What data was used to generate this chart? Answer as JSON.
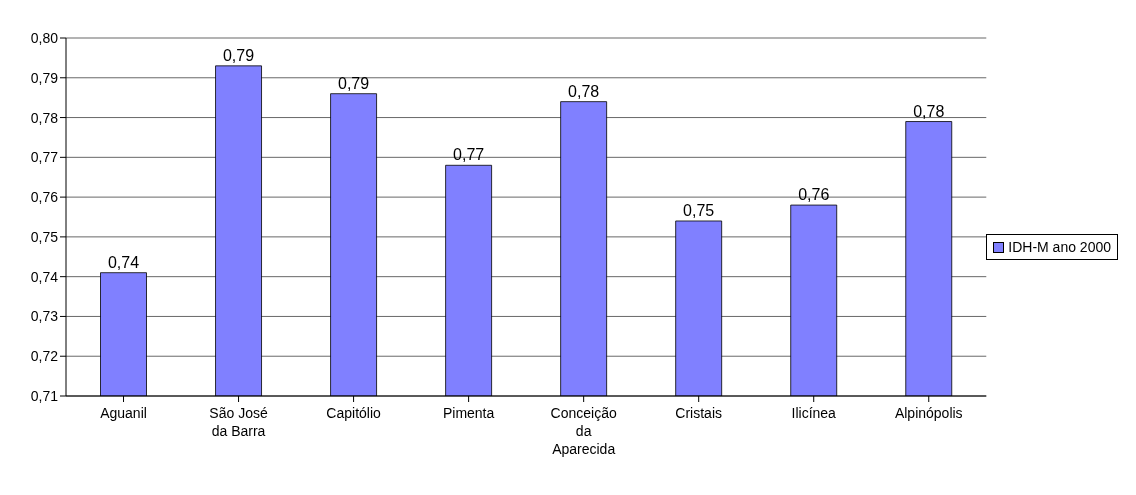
{
  "chart_data": {
    "type": "bar",
    "categories": [
      "Aguanil",
      "São José da Barra",
      "Capitólio",
      "Pimenta",
      "Conceição da Aparecida",
      "Cristais",
      "Ilicínea",
      "Alpinópolis"
    ],
    "series": [
      {
        "name": "IDH-M ano 2000",
        "color": "#8080ff",
        "values": [
          0.741,
          0.793,
          0.786,
          0.768,
          0.784,
          0.754,
          0.758,
          0.779
        ],
        "value_labels": [
          "0,74",
          "0,79",
          "0,79",
          "0,77",
          "0,78",
          "0,75",
          "0,76",
          "0,78"
        ]
      }
    ],
    "ylim": [
      0.71,
      0.8
    ],
    "yticks": [
      {
        "value": 0.71,
        "label": "0,71"
      },
      {
        "value": 0.72,
        "label": "0,72"
      },
      {
        "value": 0.73,
        "label": "0,73"
      },
      {
        "value": 0.74,
        "label": "0,74"
      },
      {
        "value": 0.75,
        "label": "0,75"
      },
      {
        "value": 0.76,
        "label": "0,76"
      },
      {
        "value": 0.77,
        "label": "0,77"
      },
      {
        "value": 0.78,
        "label": "0,78"
      },
      {
        "value": 0.79,
        "label": "0,79"
      },
      {
        "value": 0.8,
        "label": "0,80"
      }
    ],
    "grid": "y",
    "legend": "right"
  }
}
